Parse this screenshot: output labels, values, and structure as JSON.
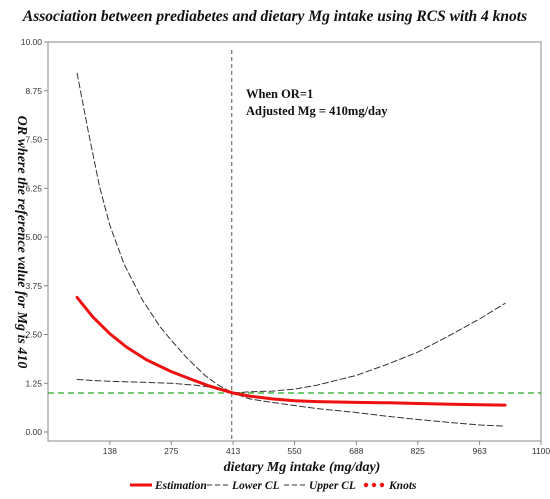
{
  "chart_data": {
    "type": "line",
    "title": "Association between prediabetes and dietary Mg intake using RCS with 4 knots",
    "xlabel": "dietary Mg intake (mg/day)",
    "ylabel": "OR where the reference value for Mg is 410",
    "xlim": [
      0,
      1100
    ],
    "ylim": [
      0,
      10
    ],
    "x_ticks": [
      "138",
      "275",
      "413",
      "550",
      "688",
      "825",
      "963",
      "1100"
    ],
    "y_ticks": [
      "0.00",
      "1.25",
      "2.50",
      "3.75",
      "5.00",
      "6.25",
      "7.50",
      "8.75",
      "10.00"
    ],
    "reference_lines": {
      "vertical_x": 410,
      "horizontal_y": 1.0,
      "vertical_color": "#555555",
      "horizontal_color": "#22aa22"
    },
    "annotations": [
      "When OR=1",
      "Adjusted Mg = 410mg/day"
    ],
    "series": [
      {
        "name": "Estimation",
        "color": "#ee1111",
        "style": "solid",
        "x": [
          65,
          100,
          138,
          175,
          220,
          275,
          320,
          360,
          413,
          450,
          500,
          550,
          600,
          688,
          760,
          825,
          900,
          963,
          1020
        ],
        "y": [
          3.45,
          2.95,
          2.52,
          2.18,
          1.85,
          1.55,
          1.35,
          1.18,
          1.0,
          0.92,
          0.85,
          0.8,
          0.78,
          0.76,
          0.75,
          0.73,
          0.71,
          0.7,
          0.69
        ]
      },
      {
        "name": "Lower CL",
        "color": "#333333",
        "style": "dashed",
        "x": [
          65,
          100,
          138,
          200,
          275,
          330,
          380,
          413,
          450,
          500,
          550,
          600,
          688,
          760,
          825,
          900,
          963,
          1020
        ],
        "y": [
          1.35,
          1.32,
          1.3,
          1.28,
          1.25,
          1.2,
          1.12,
          1.0,
          0.85,
          0.76,
          0.68,
          0.6,
          0.5,
          0.4,
          0.32,
          0.24,
          0.18,
          0.15
        ]
      },
      {
        "name": "Upper CL",
        "color": "#333333",
        "style": "dashed",
        "x": [
          65,
          90,
          115,
          138,
          170,
          210,
          250,
          275,
          310,
          350,
          380,
          413,
          450,
          500,
          550,
          600,
          688,
          760,
          825,
          900,
          963,
          1020
        ],
        "y": [
          9.2,
          7.7,
          6.3,
          5.3,
          4.3,
          3.4,
          2.7,
          2.35,
          1.9,
          1.45,
          1.2,
          1.0,
          1.03,
          1.05,
          1.1,
          1.2,
          1.45,
          1.75,
          2.05,
          2.5,
          2.9,
          3.3
        ]
      },
      {
        "name": "Knots",
        "color": "#ee1111",
        "style": "dotted",
        "x": [],
        "y": []
      }
    ],
    "legend": {
      "placement": "bottom"
    },
    "grid": false
  }
}
